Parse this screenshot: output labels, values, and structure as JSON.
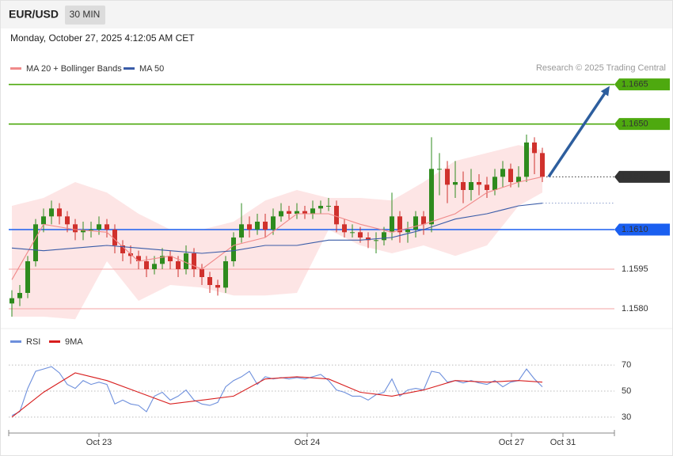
{
  "header": {
    "symbol": "EUR/USD",
    "interval": "30 MIN",
    "timestamp": "Monday, October 27, 2025 4:12:05 AM CET"
  },
  "chart_data": [
    {
      "type": "candlestick",
      "source": "Research © 2025 Trading Central",
      "up_color": "#2e8b1e",
      "down_color": "#d0312d",
      "open": [
        1.1582,
        1.1584,
        1.1586,
        1.1598,
        1.1612,
        1.1615,
        1.1618,
        1.1615,
        1.1612,
        1.1609,
        1.161,
        1.161,
        1.1612,
        1.161,
        1.1604,
        1.1601,
        1.16,
        1.1598,
        1.1595,
        1.1597,
        1.16,
        1.1598,
        1.1595,
        1.1601,
        1.1595,
        1.1592,
        1.1589,
        1.1588,
        1.1598,
        1.1607,
        1.1612,
        1.161,
        1.1613,
        1.161,
        1.1615,
        1.1617,
        1.1616,
        1.1617,
        1.1616,
        1.1618,
        1.1619,
        1.1619,
        1.1612,
        1.1609,
        1.1609,
        1.1607,
        1.1606,
        1.1606,
        1.1609,
        1.1615,
        1.1609,
        1.161,
        1.1615,
        1.1612,
        1.1633,
        1.1633,
        1.1627,
        1.1628,
        1.1625,
        1.1628,
        1.1627,
        1.1625,
        1.163,
        1.1633,
        1.1628,
        1.163,
        1.1643,
        1.1639
      ],
      "high": [
        1.1587,
        1.1589,
        1.16,
        1.1614,
        1.1618,
        1.1621,
        1.162,
        1.1617,
        1.1614,
        1.1613,
        1.1613,
        1.1615,
        1.1614,
        1.1612,
        1.1606,
        1.1604,
        1.1602,
        1.16,
        1.16,
        1.1603,
        1.1602,
        1.16,
        1.1604,
        1.1603,
        1.1597,
        1.1594,
        1.1591,
        1.16,
        1.1609,
        1.162,
        1.1615,
        1.1616,
        1.1616,
        1.1618,
        1.162,
        1.1619,
        1.162,
        1.1619,
        1.1621,
        1.1621,
        1.1622,
        1.1621,
        1.1614,
        1.1612,
        1.1611,
        1.1609,
        1.1609,
        1.1611,
        1.1624,
        1.1617,
        1.1613,
        1.1617,
        1.1617,
        1.1645,
        1.1639,
        1.1636,
        1.1636,
        1.1632,
        1.1633,
        1.1631,
        1.163,
        1.1633,
        1.1636,
        1.1635,
        1.1634,
        1.1646,
        1.1645,
        1.1641
      ],
      "low": [
        1.1577,
        1.1581,
        1.1584,
        1.1596,
        1.1609,
        1.1612,
        1.1612,
        1.1609,
        1.1606,
        1.1606,
        1.1607,
        1.1608,
        1.1607,
        1.1601,
        1.1598,
        1.1597,
        1.1595,
        1.1592,
        1.1593,
        1.1595,
        1.1595,
        1.1592,
        1.1593,
        1.1592,
        1.1589,
        1.1586,
        1.1585,
        1.1586,
        1.1596,
        1.1605,
        1.1607,
        1.1608,
        1.1607,
        1.1608,
        1.1613,
        1.1614,
        1.1614,
        1.1614,
        1.1614,
        1.1616,
        1.1617,
        1.1609,
        1.1607,
        1.1607,
        1.1605,
        1.1603,
        1.1601,
        1.1604,
        1.1606,
        1.1605,
        1.1605,
        1.1607,
        1.1608,
        1.1609,
        1.1623,
        1.162,
        1.1622,
        1.162,
        1.1621,
        1.1623,
        1.1622,
        1.1623,
        1.1626,
        1.1626,
        1.1626,
        1.1628,
        1.1631,
        1.1628
      ],
      "close": [
        1.1584,
        1.1586,
        1.1598,
        1.1612,
        1.1615,
        1.1618,
        1.1615,
        1.1612,
        1.1609,
        1.161,
        1.161,
        1.1612,
        1.161,
        1.1604,
        1.1601,
        1.16,
        1.1598,
        1.1595,
        1.1597,
        1.16,
        1.1598,
        1.1595,
        1.1601,
        1.1595,
        1.1592,
        1.1589,
        1.1588,
        1.1598,
        1.1607,
        1.1612,
        1.161,
        1.1613,
        1.161,
        1.1615,
        1.1617,
        1.1616,
        1.1617,
        1.1616,
        1.1618,
        1.1619,
        1.1619,
        1.1612,
        1.1609,
        1.1609,
        1.1607,
        1.1606,
        1.1606,
        1.1609,
        1.1615,
        1.1609,
        1.161,
        1.1615,
        1.1612,
        1.1633,
        1.1633,
        1.1627,
        1.1628,
        1.1625,
        1.1628,
        1.1627,
        1.1625,
        1.163,
        1.1633,
        1.1628,
        1.163,
        1.1643,
        1.1639,
        1.163
      ],
      "overlays": [
        {
          "name": "MA 20 + Bollinger Bands",
          "color": "#f08a8a",
          "band_color": "#fde1e1",
          "x": [
            0,
            4,
            8,
            12,
            16,
            20,
            24,
            28,
            32,
            36,
            40,
            44,
            48,
            52,
            56,
            60,
            64,
            67
          ],
          "values": [
            1.1591,
            1.1612,
            1.161,
            1.1609,
            1.1598,
            1.16,
            1.1595,
            1.1604,
            1.1607,
            1.1616,
            1.1616,
            1.1612,
            1.1609,
            1.1612,
            1.1616,
            1.1624,
            1.1628,
            1.163
          ],
          "upper": [
            1.1619,
            1.1622,
            1.1628,
            1.1624,
            1.1616,
            1.161,
            1.161,
            1.1613,
            1.1621,
            1.1625,
            1.1622,
            1.1622,
            1.1621,
            1.1628,
            1.1636,
            1.1639,
            1.1642,
            1.164
          ],
          "lower": [
            1.1577,
            1.1577,
            1.1576,
            1.1598,
            1.1583,
            1.1589,
            1.1588,
            1.1585,
            1.1585,
            1.1586,
            1.161,
            1.1604,
            1.1601,
            1.1604,
            1.16,
            1.1604,
            1.1619,
            1.1624
          ]
        },
        {
          "name": "MA 50",
          "color": "#3a5ca8",
          "x": [
            0,
            4,
            8,
            12,
            16,
            20,
            24,
            28,
            32,
            36,
            40,
            44,
            48,
            52,
            56,
            60,
            64,
            67
          ],
          "values": [
            1.1603,
            1.1602,
            1.1603,
            1.1604,
            1.1603,
            1.1602,
            1.1601,
            1.1602,
            1.1604,
            1.1604,
            1.1606,
            1.1606,
            1.1607,
            1.161,
            1.1614,
            1.1616,
            1.1619,
            1.162
          ]
        }
      ],
      "levels": [
        {
          "value": 1.1665,
          "color": "#4ea90f",
          "style": "box"
        },
        {
          "value": 1.165,
          "label": "1.1650",
          "color": "#4ea90f",
          "style": "box"
        },
        {
          "value": 1.163,
          "label": "1.1630",
          "color": "#333333",
          "style": "dotted-box"
        },
        {
          "value": 1.161,
          "label": "1.1610",
          "color": "#1a5ff0",
          "style": "box"
        },
        {
          "value": 1.1595,
          "color": "#f3a3a3",
          "text_color": "#d81e1e",
          "style": "text"
        },
        {
          "value": 1.158,
          "label": "1.1580",
          "color": "#f3a3a3",
          "text_color": "#d81e1e",
          "style": "text"
        }
      ],
      "xlim": [
        -0.4,
        76.1
      ],
      "ylim": [
        1.1574,
        1.1667
      ],
      "xticks": [
        {
          "value": 11,
          "label": "Oct 23"
        },
        {
          "value": 37.3,
          "label": "Oct 24"
        },
        {
          "value": 63.1,
          "label": "Oct 27"
        },
        {
          "value": 69.6,
          "label": "Oct 31"
        }
      ]
    },
    {
      "type": "line",
      "series": [
        {
          "name": "RSI",
          "color": "#6d8fdc",
          "values": [
            31.2,
            34.2,
            52.1,
            65.2,
            67.0,
            68.8,
            64.0,
            55.1,
            52.1,
            58.1,
            55.1,
            56.9,
            55.1,
            40.1,
            43.1,
            40.1,
            39.0,
            34.2,
            46.1,
            49.1,
            43.1,
            46.1,
            50.9,
            43.1,
            40.1,
            39.0,
            41.3,
            53.3,
            58.1,
            61.0,
            65.2,
            55.1,
            61.0,
            59.3,
            60.4,
            59.3,
            60.4,
            59.3,
            61.0,
            62.8,
            58.1,
            50.9,
            49.1,
            46.1,
            46.1,
            43.1,
            47.3,
            49.1,
            59.3,
            46.1,
            50.9,
            52.1,
            50.9,
            65.2,
            64.0,
            56.9,
            58.1,
            56.3,
            58.1,
            56.3,
            55.1,
            58.1,
            53.3,
            56.9,
            58.1,
            67.0,
            59.3,
            53.3
          ]
        },
        {
          "name": "9MA",
          "color": "#d81e1e",
          "x": [
            0,
            4,
            8,
            12,
            16,
            20,
            24,
            28,
            32,
            36,
            40,
            44,
            48,
            52,
            56,
            60,
            64,
            67
          ],
          "values": [
            30.0,
            49.1,
            64.0,
            58.1,
            49.1,
            40.1,
            43.1,
            46.1,
            59.3,
            61.0,
            59.3,
            49.1,
            46.1,
            50.9,
            58.1,
            56.9,
            58.1,
            56.9
          ]
        }
      ],
      "xlim": [
        -0.4,
        76.1
      ],
      "ylim": [
        19,
        78
      ],
      "yticks": [
        30,
        50,
        70
      ]
    }
  ]
}
